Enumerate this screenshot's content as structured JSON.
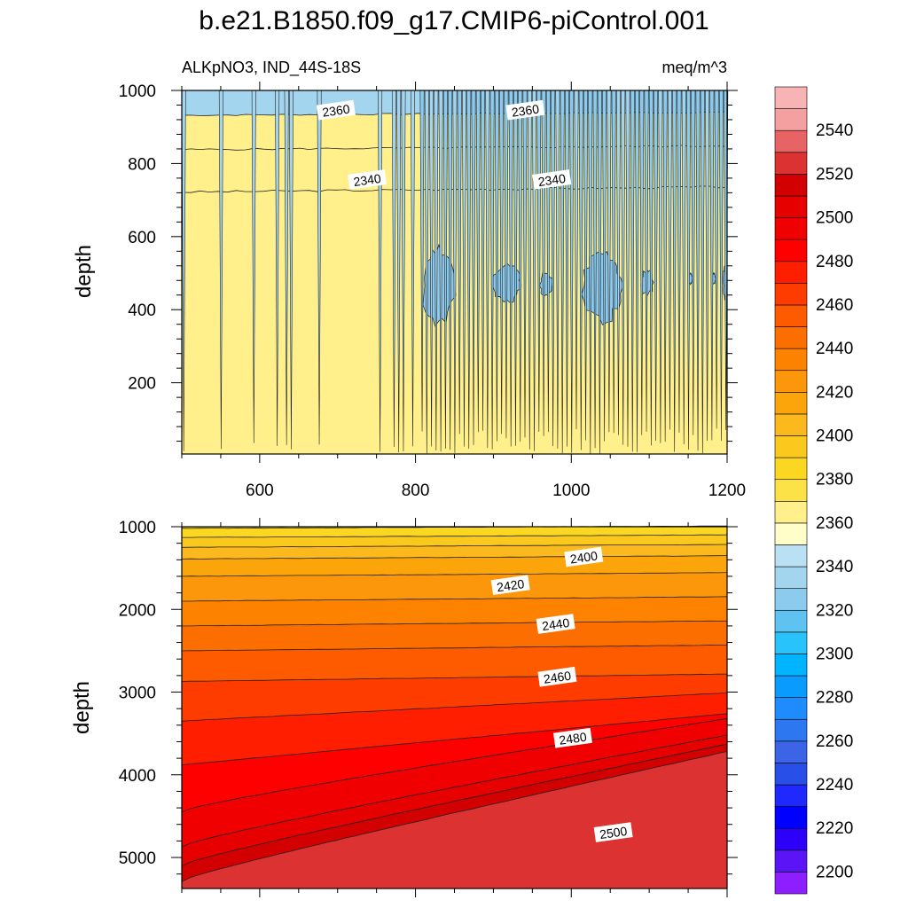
{
  "chart_data": {
    "type": "contour",
    "title": "b.e21.B1850.f09_g17.CMIP6-piControl.001",
    "variable": "ALKpNO3, IND_44S-18S",
    "units": "meq/m^3",
    "colorbar": {
      "levels": [
        2200,
        2210,
        2220,
        2230,
        2240,
        2250,
        2260,
        2270,
        2280,
        2290,
        2300,
        2310,
        2320,
        2330,
        2340,
        2350,
        2360,
        2370,
        2380,
        2390,
        2400,
        2410,
        2420,
        2430,
        2440,
        2450,
        2460,
        2470,
        2480,
        2490,
        2500,
        2510,
        2520,
        2530,
        2540,
        2550
      ],
      "tick_labels": [
        "2200",
        "2220",
        "2240",
        "2260",
        "2280",
        "2300",
        "2320",
        "2340",
        "2360",
        "2380",
        "2400",
        "2420",
        "2440",
        "2460",
        "2480",
        "2500",
        "2520",
        "2540"
      ],
      "colors": [
        "#8c1eff",
        "#5a14f5",
        "#2d00fa",
        "#0000ff",
        "#1e28ff",
        "#2850e8",
        "#3c64e6",
        "#2d78f0",
        "#1e8cff",
        "#0a9bff",
        "#00b4ff",
        "#28c3fa",
        "#5fc3f2",
        "#8ccbee",
        "#a4d5ef",
        "#b9e0f3",
        "#fffdc8",
        "#fff08c",
        "#fce246",
        "#fbd722",
        "#fbc81e",
        "#fcb91e",
        "#fca50a",
        "#fc960a",
        "#fd8200",
        "#fd6e00",
        "#fe5a00",
        "#ff3c00",
        "#ff1e00",
        "#ff0000",
        "#f00000",
        "#e60000",
        "#d20000",
        "#dc3232",
        "#e86464",
        "#f5a0a0",
        "#f8b4b4"
      ]
    },
    "panels": [
      {
        "ylabel": "depth",
        "x_ticks": [
          600,
          800,
          1000,
          1200
        ],
        "xlim": [
          500,
          1200
        ],
        "y_ticks": [
          200,
          400,
          600,
          800,
          1000
        ],
        "ylim": [
          1000,
          5
        ],
        "contour_labels": [
          {
            "text": "2340",
            "x": 738,
            "y": 755
          },
          {
            "text": "2340",
            "x": 975,
            "y": 755
          },
          {
            "text": "2360",
            "x": 698,
            "y": 945
          },
          {
            "text": "2360",
            "x": 941,
            "y": 945
          }
        ]
      },
      {
        "ylabel": "depth",
        "x_ticks": [
          600,
          800,
          1000,
          1200
        ],
        "xlim": [
          500,
          1200
        ],
        "y_ticks": [
          1000,
          2000,
          3000,
          4000,
          5000
        ],
        "ylim": [
          1000,
          5375
        ],
        "contour_labels": [
          {
            "text": "2400",
            "x": 1016,
            "y": 1370
          },
          {
            "text": "2420",
            "x": 922,
            "y": 1710
          },
          {
            "text": "2440",
            "x": 980,
            "y": 2180
          },
          {
            "text": "2460",
            "x": 982,
            "y": 2820
          },
          {
            "text": "2480",
            "x": 1002,
            "y": 3560
          },
          {
            "text": "2500",
            "x": 1054,
            "y": 4700
          }
        ]
      }
    ]
  }
}
